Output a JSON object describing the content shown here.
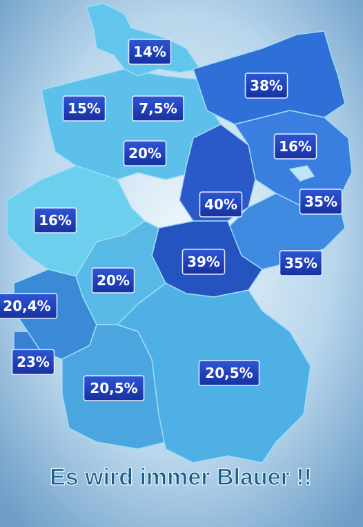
{
  "title": "Es wird immer Blauer !!",
  "regions": [
    {
      "label": "14%"
    },
    {
      "label": "15%"
    },
    {
      "label": "7,5%"
    },
    {
      "label": "38%"
    },
    {
      "label": "20%"
    },
    {
      "label": "16%"
    },
    {
      "label": "35%"
    },
    {
      "label": "40%"
    },
    {
      "label": "16%"
    },
    {
      "label": "39%"
    },
    {
      "label": "35%"
    },
    {
      "label": "20%"
    },
    {
      "label": "20,4%"
    },
    {
      "label": "23%"
    },
    {
      "label": "20,5%"
    },
    {
      "label": "20,5%"
    }
  ]
}
